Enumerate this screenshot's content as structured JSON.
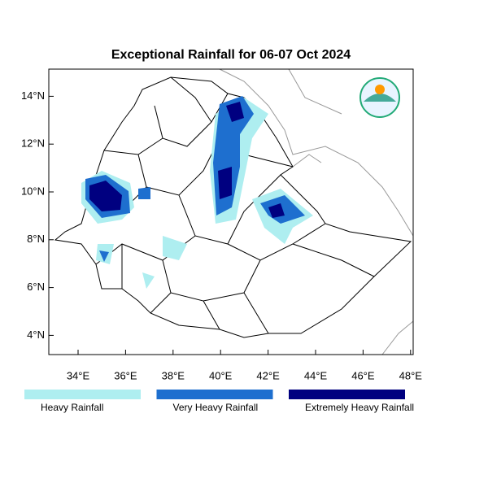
{
  "title": "Exceptional Rainfall for 06-07 Oct 2024",
  "lat_ticks": [
    {
      "value": 14,
      "label": "14°N"
    },
    {
      "value": 12,
      "label": "12°N"
    },
    {
      "value": 10,
      "label": "10°N"
    },
    {
      "value": 8,
      "label": "8°N"
    },
    {
      "value": 6,
      "label": "6°N"
    },
    {
      "value": 4,
      "label": "4°N"
    }
  ],
  "lon_ticks": [
    {
      "value": 34,
      "label": "34°E"
    },
    {
      "value": 36,
      "label": "36°E"
    },
    {
      "value": 38,
      "label": "38°E"
    },
    {
      "value": 40,
      "label": "40°E"
    },
    {
      "value": 42,
      "label": "42°E"
    },
    {
      "value": 44,
      "label": "44°E"
    },
    {
      "value": 46,
      "label": "46°E"
    },
    {
      "value": 48,
      "label": "48°E"
    }
  ],
  "legend": [
    {
      "name": "Heavy Rainfall",
      "color": "#aeeef0"
    },
    {
      "name": "Very Heavy Rainfall",
      "color": "#1e6fcf"
    },
    {
      "name": "Extremely Heavy Rainfall",
      "color": "#000080"
    }
  ]
}
